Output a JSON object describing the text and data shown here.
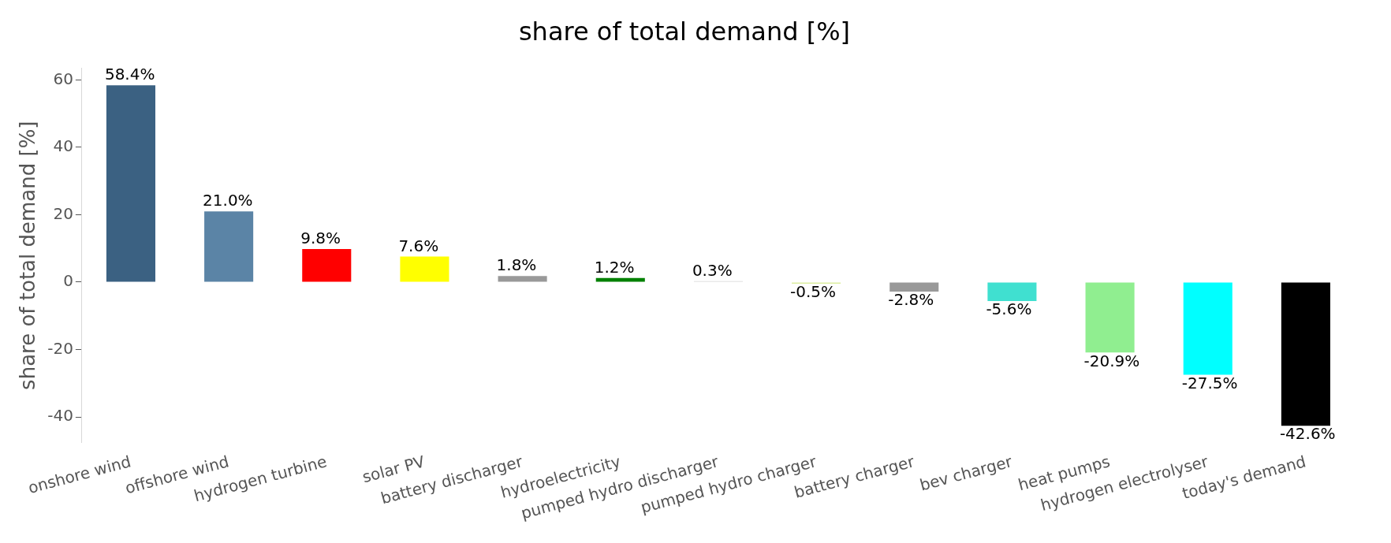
{
  "chart_data": {
    "type": "bar",
    "title": "share of total demand [%]",
    "ylabel": "share of total demand [%]",
    "categories": [
      "onshore wind",
      "offshore wind",
      "hydrogen turbine",
      "solar PV",
      "battery discharger",
      "hydroelectricity",
      "pumped hydro discharger",
      "pumped hydro charger",
      "battery charger",
      "bev charger",
      "heat pumps",
      "hydrogen electrolyser",
      "today's demand"
    ],
    "values": [
      58.4,
      21.0,
      9.8,
      7.6,
      1.8,
      1.2,
      0.3,
      -0.5,
      -2.8,
      -5.6,
      -20.9,
      -27.5,
      -42.6
    ],
    "colors": [
      "#3b6182",
      "#5b84a6",
      "#ff0000",
      "#ffff00",
      "#999999",
      "#008000",
      "#d3d3d3",
      "#dceea0",
      "#999999",
      "#40e0d0",
      "#90ee90",
      "#00ffff",
      "#000000"
    ],
    "value_labels": [
      "58.4%",
      "21.0%",
      "9.8%",
      "7.6%",
      "1.8%",
      "1.2%",
      "0.3%",
      "-0.5%",
      "-2.8%",
      "-5.6%",
      "-20.9%",
      "-27.5%",
      "-42.6%"
    ],
    "ylim": [
      -47.7,
      63.5
    ],
    "yticks": [
      -40,
      -20,
      0,
      20,
      40,
      60
    ],
    "grid": false,
    "legend": false
  }
}
